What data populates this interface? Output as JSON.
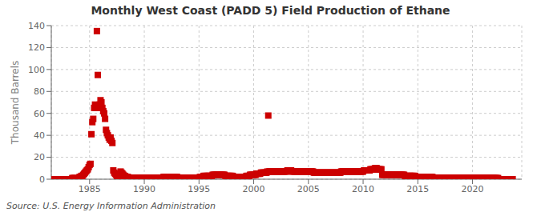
{
  "chart_data": {
    "type": "scatter",
    "title": "Monthly West Coast (PADD 5) Field Production of Ethane",
    "ylabel": "Thousand Barrels",
    "annotation": "Source: U.S. Energy Information Administration",
    "color": "#cc0000",
    "marker": "square",
    "grid": true,
    "xlim": [
      1981.5,
      2024.5
    ],
    "xticks": [
      1985,
      1990,
      1995,
      2000,
      2005,
      2010,
      2015,
      2020
    ],
    "ylim": [
      0,
      140
    ],
    "yticks": [
      0,
      20,
      40,
      60,
      80,
      100,
      120,
      140
    ],
    "x": [
      1981.583,
      1981.667,
      1981.75,
      1981.833,
      1981.917,
      1982.0,
      1982.083,
      1982.167,
      1982.25,
      1982.333,
      1982.417,
      1982.5,
      1982.583,
      1982.667,
      1982.75,
      1982.833,
      1982.917,
      1983.0,
      1983.083,
      1983.167,
      1983.25,
      1983.333,
      1983.417,
      1983.5,
      1983.583,
      1983.667,
      1983.75,
      1983.833,
      1983.917,
      1984.0,
      1984.083,
      1984.167,
      1984.25,
      1984.333,
      1984.417,
      1984.5,
      1984.583,
      1984.667,
      1984.75,
      1984.833,
      1984.917,
      1985.0,
      1985.083,
      1985.167,
      1985.25,
      1985.333,
      1985.417,
      1985.5,
      1985.583,
      1985.667,
      1985.75,
      1985.833,
      1985.917,
      1986.0,
      1986.083,
      1986.167,
      1986.25,
      1986.333,
      1986.417,
      1986.5,
      1986.583,
      1986.667,
      1986.75,
      1986.833,
      1986.917,
      1987.0,
      1987.083,
      1987.167,
      1987.25,
      1987.333,
      1987.417,
      1987.5,
      1987.583,
      1987.667,
      1987.75,
      1987.833,
      1987.917,
      1988.0,
      1988.083,
      1988.167,
      1988.25,
      1988.333,
      1988.417,
      1988.5,
      1988.583,
      1988.667,
      1988.75,
      1988.833,
      1988.917,
      1989.0,
      1989.083,
      1989.167,
      1989.25,
      1989.333,
      1989.417,
      1989.5,
      1989.583,
      1989.667,
      1989.75,
      1989.833,
      1989.917,
      1990.0,
      1990.083,
      1990.167,
      1990.25,
      1990.333,
      1990.417,
      1990.5,
      1990.583,
      1990.667,
      1990.75,
      1990.833,
      1990.917,
      1991.0,
      1991.083,
      1991.167,
      1991.25,
      1991.333,
      1991.417,
      1991.5,
      1991.583,
      1991.667,
      1991.75,
      1991.833,
      1991.917,
      1992.0,
      1992.083,
      1992.167,
      1992.25,
      1992.333,
      1992.417,
      1992.5,
      1992.583,
      1992.667,
      1992.75,
      1992.833,
      1992.917,
      1993.0,
      1993.083,
      1993.167,
      1993.25,
      1993.333,
      1993.417,
      1993.5,
      1993.583,
      1993.667,
      1993.75,
      1993.833,
      1993.917,
      1994.0,
      1994.083,
      1994.167,
      1994.25,
      1994.333,
      1994.417,
      1994.5,
      1994.583,
      1994.667,
      1994.75,
      1994.833,
      1994.917,
      1995.0,
      1995.083,
      1995.167,
      1995.25,
      1995.333,
      1995.417,
      1995.5,
      1995.583,
      1995.667,
      1995.75,
      1995.833,
      1995.917,
      1996.0,
      1996.083,
      1996.167,
      1996.25,
      1996.333,
      1996.417,
      1996.5,
      1996.583,
      1996.667,
      1996.75,
      1996.833,
      1996.917,
      1997.0,
      1997.083,
      1997.167,
      1997.25,
      1997.333,
      1997.417,
      1997.5,
      1997.583,
      1997.667,
      1997.75,
      1997.833,
      1997.917,
      1998.0,
      1998.083,
      1998.167,
      1998.25,
      1998.333,
      1998.417,
      1998.5,
      1998.583,
      1998.667,
      1998.75,
      1998.833,
      1998.917,
      1999.0,
      1999.083,
      1999.167,
      1999.25,
      1999.333,
      1999.417,
      1999.5,
      1999.583,
      1999.667,
      1999.75,
      1999.833,
      1999.917,
      2000.0,
      2000.083,
      2000.167,
      2000.25,
      2000.333,
      2000.417,
      2000.5,
      2000.583,
      2000.667,
      2000.75,
      2000.833,
      2000.917,
      2001.0,
      2001.083,
      2001.167,
      2001.25,
      2001.333,
      2001.417,
      2001.5,
      2001.583,
      2001.667,
      2001.75,
      2001.833,
      2001.917,
      2002.0,
      2002.083,
      2002.167,
      2002.25,
      2002.333,
      2002.417,
      2002.5,
      2002.583,
      2002.667,
      2002.75,
      2002.833,
      2002.917,
      2003.0,
      2003.083,
      2003.167,
      2003.25,
      2003.333,
      2003.417,
      2003.5,
      2003.583,
      2003.667,
      2003.75,
      2003.833,
      2003.917,
      2004.0,
      2004.083,
      2004.167,
      2004.25,
      2004.333,
      2004.417,
      2004.5,
      2004.583,
      2004.667,
      2004.75,
      2004.833,
      2004.917,
      2005.0,
      2005.083,
      2005.167,
      2005.25,
      2005.333,
      2005.417,
      2005.5,
      2005.583,
      2005.667,
      2005.75,
      2005.833,
      2005.917,
      2006.0,
      2006.083,
      2006.167,
      2006.25,
      2006.333,
      2006.417,
      2006.5,
      2006.583,
      2006.667,
      2006.75,
      2006.833,
      2006.917,
      2007.0,
      2007.083,
      2007.167,
      2007.25,
      2007.333,
      2007.417,
      2007.5,
      2007.583,
      2007.667,
      2007.75,
      2007.833,
      2007.917,
      2008.0,
      2008.083,
      2008.167,
      2008.25,
      2008.333,
      2008.417,
      2008.5,
      2008.583,
      2008.667,
      2008.75,
      2008.833,
      2008.917,
      2009.0,
      2009.083,
      2009.167,
      2009.25,
      2009.333,
      2009.417,
      2009.5,
      2009.583,
      2009.667,
      2009.75,
      2009.833,
      2009.917,
      2010.0,
      2010.083,
      2010.167,
      2010.25,
      2010.333,
      2010.417,
      2010.5,
      2010.583,
      2010.667,
      2010.75,
      2010.833,
      2010.917,
      2011.0,
      2011.083,
      2011.167,
      2011.25,
      2011.333,
      2011.417,
      2011.5,
      2011.583,
      2011.667,
      2011.75,
      2011.833,
      2011.917,
      2012.0,
      2012.083,
      2012.167,
      2012.25,
      2012.333,
      2012.417,
      2012.5,
      2012.583,
      2012.667,
      2012.75,
      2012.833,
      2012.917,
      2013.0,
      2013.083,
      2013.167,
      2013.25,
      2013.333,
      2013.417,
      2013.5,
      2013.583,
      2013.667,
      2013.75,
      2013.833,
      2013.917,
      2014.0,
      2014.083,
      2014.167,
      2014.25,
      2014.333,
      2014.417,
      2014.5,
      2014.583,
      2014.667,
      2014.75,
      2014.833,
      2014.917,
      2015.0,
      2015.083,
      2015.167,
      2015.25,
      2015.333,
      2015.417,
      2015.5,
      2015.583,
      2015.667,
      2015.75,
      2015.833,
      2015.917,
      2016.0,
      2016.083,
      2016.167,
      2016.25,
      2016.333,
      2016.417,
      2016.5,
      2016.583,
      2016.667,
      2016.75,
      2016.833,
      2016.917,
      2017.0,
      2017.083,
      2017.167,
      2017.25,
      2017.333,
      2017.417,
      2017.5,
      2017.583,
      2017.667,
      2017.75,
      2017.833,
      2017.917,
      2018.0,
      2018.083,
      2018.167,
      2018.25,
      2018.333,
      2018.417,
      2018.5,
      2018.583,
      2018.667,
      2018.75,
      2018.833,
      2018.917,
      2019.0,
      2019.083,
      2019.167,
      2019.25,
      2019.333,
      2019.417,
      2019.5,
      2019.583,
      2019.667,
      2019.75,
      2019.833,
      2019.917,
      2020.0,
      2020.083,
      2020.167,
      2020.25,
      2020.333,
      2020.417,
      2020.5,
      2020.583,
      2020.667,
      2020.75,
      2020.833,
      2020.917,
      2021.0,
      2021.083,
      2021.167,
      2021.25,
      2021.333,
      2021.417,
      2021.5,
      2021.583,
      2021.667,
      2021.75,
      2021.833,
      2021.917,
      2022.0,
      2022.083,
      2022.167,
      2022.25,
      2022.333,
      2022.417,
      2022.5,
      2022.583,
      2022.667,
      2022.75,
      2022.833,
      2022.917,
      2023.0,
      2023.083,
      2023.167,
      2023.25,
      2023.333,
      2023.417,
      2023.5,
      2023.583,
      2023.667
    ],
    "values": [
      0,
      0,
      0,
      0,
      0,
      0,
      0,
      0,
      0,
      0,
      0,
      0,
      0,
      0,
      0,
      0,
      0,
      0,
      0,
      0,
      0,
      0,
      1,
      1,
      1,
      1,
      0,
      0,
      0,
      1,
      2,
      2,
      3,
      3,
      4,
      5,
      6,
      7,
      8,
      9,
      11,
      13,
      14,
      41,
      52,
      55,
      65,
      68,
      65,
      135,
      95,
      65,
      68,
      72,
      70,
      65,
      62,
      60,
      55,
      45,
      42,
      40,
      38,
      36,
      38,
      35,
      33,
      8,
      6,
      5,
      4,
      3,
      3,
      2,
      5,
      7,
      6,
      5,
      4,
      3,
      3,
      2,
      2,
      2,
      1,
      1,
      1,
      1,
      1,
      1,
      1,
      1,
      1,
      1,
      1,
      1,
      1,
      1,
      1,
      1,
      1,
      1,
      1,
      1,
      1,
      1,
      1,
      1,
      1,
      1,
      1,
      1,
      1,
      1,
      1,
      1,
      1,
      1,
      1,
      1,
      1,
      1,
      2,
      2,
      2,
      2,
      2,
      2,
      2,
      2,
      2,
      2,
      2,
      2,
      2,
      2,
      2,
      2,
      1,
      1,
      1,
      1,
      1,
      1,
      1,
      1,
      1,
      1,
      1,
      1,
      1,
      1,
      1,
      1,
      1,
      1,
      1,
      1,
      1,
      1,
      1,
      1,
      2,
      2,
      2,
      2,
      3,
      3,
      3,
      3,
      3,
      3,
      3,
      3,
      3,
      3,
      4,
      4,
      4,
      4,
      4,
      4,
      4,
      4,
      4,
      4,
      4,
      4,
      4,
      4,
      3,
      3,
      3,
      3,
      3,
      3,
      3,
      3,
      3,
      2,
      2,
      2,
      2,
      2,
      2,
      2,
      2,
      2,
      2,
      2,
      2,
      2,
      2,
      3,
      3,
      3,
      3,
      4,
      4,
      4,
      4,
      4,
      4,
      4,
      5,
      5,
      5,
      5,
      5,
      6,
      6,
      6,
      6,
      6,
      6,
      6,
      7,
      58,
      7,
      7,
      7,
      7,
      7,
      7,
      7,
      7,
      7,
      7,
      7,
      7,
      7,
      7,
      7,
      7,
      7,
      7,
      7,
      7,
      8,
      8,
      8,
      8,
      8,
      7,
      7,
      7,
      7,
      7,
      7,
      7,
      7,
      7,
      7,
      7,
      7,
      7,
      7,
      7,
      7,
      7,
      7,
      7,
      7,
      7,
      7,
      7,
      7,
      6,
      6,
      6,
      6,
      6,
      6,
      6,
      6,
      6,
      6,
      6,
      6,
      6,
      6,
      6,
      6,
      6,
      6,
      6,
      6,
      6,
      6,
      6,
      6,
      6,
      6,
      6,
      6,
      6,
      6,
      7,
      7,
      7,
      7,
      7,
      7,
      7,
      7,
      7,
      7,
      7,
      7,
      7,
      7,
      7,
      7,
      7,
      7,
      7,
      7,
      7,
      7,
      7,
      7,
      7,
      8,
      8,
      8,
      8,
      8,
      8,
      8,
      9,
      9,
      9,
      9,
      9,
      10,
      10,
      10,
      9,
      9,
      9,
      9,
      9,
      4,
      4,
      4,
      4,
      4,
      4,
      4,
      4,
      4,
      4,
      4,
      4,
      4,
      4,
      4,
      4,
      4,
      4,
      4,
      4,
      4,
      4,
      4,
      4,
      4,
      3,
      3,
      3,
      3,
      3,
      3,
      3,
      3,
      3,
      3,
      3,
      3,
      2,
      2,
      2,
      2,
      2,
      2,
      2,
      2,
      2,
      2,
      2,
      2,
      2,
      2,
      2,
      2,
      2,
      2,
      2,
      1,
      1,
      1,
      1,
      1,
      1,
      1,
      1,
      1,
      1,
      1,
      1,
      1,
      1,
      1,
      1,
      1,
      1,
      1,
      1,
      1,
      1,
      1,
      1,
      1,
      1,
      1,
      1,
      1,
      1,
      1,
      1,
      1,
      1,
      1,
      1,
      1,
      1,
      1,
      1,
      1,
      1,
      1,
      1,
      1,
      1,
      1,
      1,
      1,
      1,
      1,
      1,
      1,
      1,
      1,
      1,
      1,
      1,
      1,
      1,
      1,
      1,
      1,
      1,
      1,
      1,
      1,
      1,
      1,
      1,
      1,
      1,
      0,
      0,
      0,
      0,
      0,
      0,
      0,
      0,
      0,
      0,
      0,
      0,
      0,
      0,
      0,
      0
    ]
  }
}
